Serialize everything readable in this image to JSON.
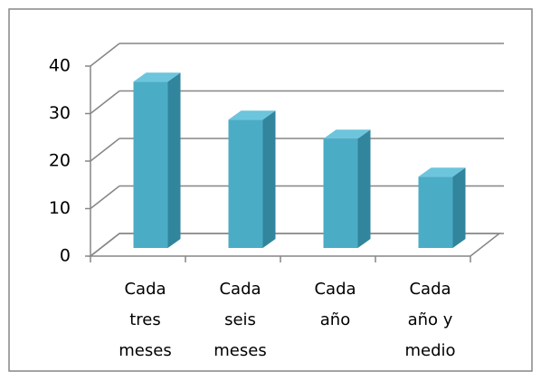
{
  "chart_data": {
    "type": "bar3d",
    "categories": [
      "Cada tres meses",
      "Cada seis meses",
      "Cada año",
      "Cada año y medio"
    ],
    "values": [
      35,
      27,
      23,
      15
    ],
    "color": "#4bacc6",
    "ylim": [
      0,
      40
    ],
    "yticks": [
      0,
      10,
      20,
      30,
      40
    ],
    "grid": true
  }
}
